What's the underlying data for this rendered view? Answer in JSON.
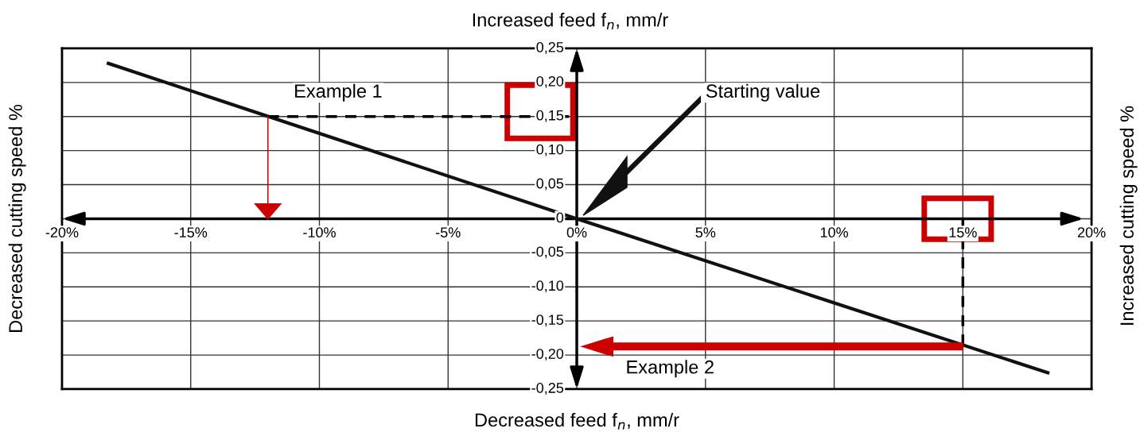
{
  "chart_data": {
    "type": "line",
    "x2label": "Increased feed f$_{n}$, mm/r",
    "xlabel": "Decreased feed f$_{n}$, mm/r",
    "ylabel": "Decreased cutting speed %",
    "y2label": "Increased cutting speed %",
    "series": [
      {
        "color": "#111111",
        "x": [
          -18.2,
          0,
          18.3
        ],
        "values": [
          0.228,
          0,
          -0.226
        ]
      },
      {
        "color": "#000000",
        "line_style": "dashed",
        "x": [
          -12,
          0
        ],
        "values": [
          0.15,
          0.15
        ]
      },
      {
        "color": "#000000",
        "line_style": "dashed",
        "x": [
          15,
          15
        ],
        "values": [
          0,
          -0.19
        ]
      }
    ],
    "xlim": [
      -20,
      20
    ],
    "xticks": [
      {
        "value": -20,
        "label": "-20%"
      },
      {
        "value": -15,
        "label": "-15%"
      },
      {
        "value": -10,
        "label": "-10%"
      },
      {
        "value": -5,
        "label": "-5%"
      },
      {
        "value": 0,
        "label": "0%"
      },
      {
        "value": 5,
        "label": "5%"
      },
      {
        "value": 10,
        "label": "10%"
      },
      {
        "value": 15,
        "label": "15%"
      },
      {
        "value": 20,
        "label": "20%"
      }
    ],
    "ylim": [
      -0.25,
      0.25
    ],
    "yticks": [
      {
        "value": -0.25,
        "label": "-0,25"
      },
      {
        "value": -0.2,
        "label": "-0,20"
      },
      {
        "value": -0.15,
        "label": "-0,15"
      },
      {
        "value": -0.1,
        "label": "-0,10"
      },
      {
        "value": -0.05,
        "label": "-0,05"
      },
      {
        "value": 0,
        "label": "0"
      },
      {
        "value": 0.05,
        "label": "0,05"
      },
      {
        "value": 0.1,
        "label": "0,10"
      },
      {
        "value": 0.15,
        "label": "0,15"
      },
      {
        "value": 0.2,
        "label": "0,20"
      },
      {
        "value": 0.25,
        "label": "0,25"
      }
    ],
    "annotations": [
      "Example 1",
      "Example 2",
      "Starting value"
    ],
    "grid": true,
    "marker": "none",
    "line_style": "solid"
  }
}
